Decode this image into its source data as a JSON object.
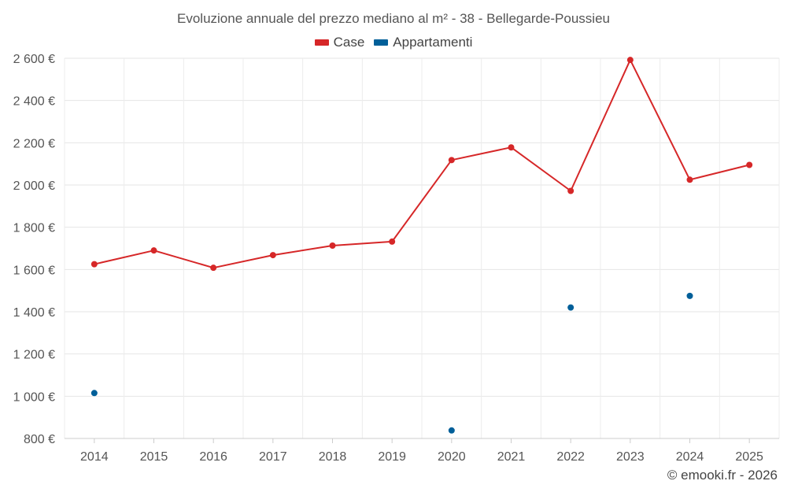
{
  "chart_data": {
    "type": "line",
    "title": "Evoluzione annuale del prezzo mediano al m² - 38 - Bellegarde-Poussieu",
    "categories": [
      "2014",
      "2015",
      "2016",
      "2017",
      "2018",
      "2019",
      "2020",
      "2021",
      "2022",
      "2023",
      "2024",
      "2025"
    ],
    "series": [
      {
        "name": "Case",
        "color": "#d62728",
        "values": [
          1625,
          1690,
          1608,
          1668,
          1713,
          1732,
          2118,
          2178,
          1972,
          2592,
          2025,
          2095
        ]
      },
      {
        "name": "Appartamenti",
        "color": "#005f99",
        "values": [
          1015,
          null,
          null,
          null,
          null,
          null,
          838,
          null,
          1420,
          null,
          1475,
          null
        ]
      }
    ],
    "ylim": [
      800,
      2600
    ],
    "yticks": [
      800,
      1000,
      1200,
      1400,
      1600,
      1800,
      2000,
      2200,
      2400,
      2600
    ],
    "ytick_labels": [
      "800 €",
      "1 000 €",
      "1 200 €",
      "1 400 €",
      "1 600 €",
      "1 800 €",
      "2 000 €",
      "2 200 €",
      "2 400 €",
      "2 600 €"
    ],
    "grid": true,
    "legend_position": "top-center",
    "xlabel": "",
    "ylabel": ""
  },
  "credit": "© emooki.fr - 2026"
}
